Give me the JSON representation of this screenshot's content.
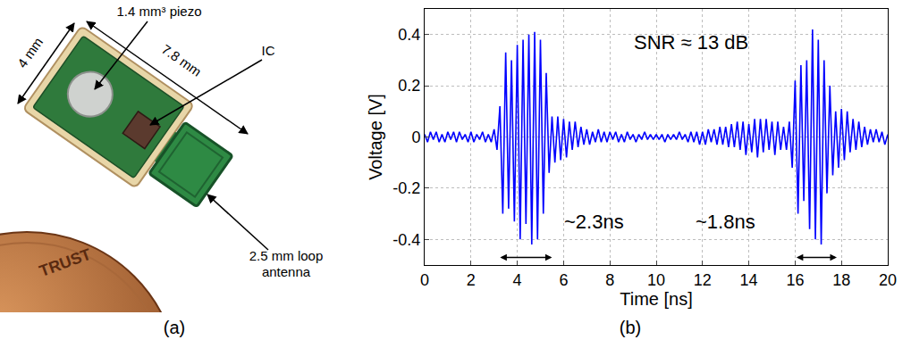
{
  "figure": {
    "panel_labels": [
      "(a)",
      "(b)"
    ]
  },
  "photo": {
    "labels": {
      "piezo": "1.4 mm³ piezo",
      "ic": "IC",
      "width": "4 mm",
      "length": "7.8 mm",
      "antenna": "2.5 mm loop antenna"
    },
    "coin_text": "TRUST"
  },
  "chart_data": {
    "type": "line",
    "x_label": "Time [ns]",
    "y_label": "Voltage [V]",
    "color": "#0000ff",
    "x": [
      0,
      0.125,
      0.25,
      0.375,
      0.5,
      0.625,
      0.75,
      0.875,
      1,
      1.125,
      1.25,
      1.375,
      1.5,
      1.625,
      1.75,
      1.875,
      2,
      2.125,
      2.25,
      2.375,
      2.5,
      2.625,
      2.75,
      2.875,
      3,
      3.125,
      3.25,
      3.375,
      3.5,
      3.625,
      3.75,
      3.875,
      4,
      4.125,
      4.25,
      4.375,
      4.5,
      4.625,
      4.75,
      4.875,
      5,
      5.125,
      5.25,
      5.375,
      5.5,
      5.625,
      5.75,
      5.875,
      6,
      6.125,
      6.25,
      6.375,
      6.5,
      6.625,
      6.75,
      6.875,
      7,
      7.125,
      7.25,
      7.375,
      7.5,
      7.625,
      7.75,
      7.875,
      8,
      8.125,
      8.25,
      8.375,
      8.5,
      8.625,
      8.75,
      8.875,
      9,
      9.125,
      9.25,
      9.375,
      9.5,
      9.625,
      9.75,
      9.875,
      10,
      10.125,
      10.25,
      10.375,
      10.5,
      10.625,
      10.75,
      10.875,
      11,
      11.125,
      11.25,
      11.375,
      11.5,
      11.625,
      11.75,
      11.875,
      12,
      12.125,
      12.25,
      12.375,
      12.5,
      12.625,
      12.75,
      12.875,
      13,
      13.125,
      13.25,
      13.375,
      13.5,
      13.625,
      13.75,
      13.875,
      14,
      14.125,
      14.25,
      14.375,
      14.5,
      14.625,
      14.75,
      14.875,
      15,
      15.125,
      15.25,
      15.375,
      15.5,
      15.625,
      15.75,
      15.875,
      16,
      16.125,
      16.25,
      16.375,
      16.5,
      16.625,
      16.75,
      16.875,
      17,
      17.125,
      17.25,
      17.375,
      17.5,
      17.625,
      17.75,
      17.875,
      18,
      18.125,
      18.25,
      18.375,
      18.5,
      18.625,
      18.75,
      18.875,
      19,
      19.125,
      19.25,
      19.375,
      19.5,
      19.625,
      19.75,
      19.875,
      20
    ],
    "values": [
      0.01,
      -0.02,
      0.02,
      -0.01,
      0.02,
      -0.02,
      0.01,
      -0.02,
      0.02,
      -0.01,
      0.02,
      -0.02,
      0.02,
      -0.01,
      0.01,
      -0.02,
      0.02,
      -0.02,
      0.01,
      -0.01,
      0.02,
      -0.02,
      0.01,
      -0.02,
      0.03,
      -0.05,
      0.12,
      -0.3,
      0.33,
      -0.28,
      0.3,
      -0.33,
      0.36,
      -0.4,
      0.38,
      -0.34,
      0.4,
      -0.42,
      0.41,
      -0.4,
      0.38,
      -0.3,
      0.25,
      -0.14,
      0.08,
      -0.1,
      0.08,
      -0.09,
      0.07,
      -0.08,
      0.06,
      -0.05,
      0.06,
      -0.04,
      0.04,
      -0.03,
      0.03,
      -0.03,
      0.02,
      -0.02,
      0.03,
      -0.02,
      0.02,
      -0.02,
      0.02,
      -0.01,
      0.02,
      -0.02,
      0.01,
      -0.02,
      0.02,
      -0.01,
      0.01,
      -0.02,
      0.01,
      -0.01,
      0.02,
      -0.01,
      0.01,
      -0.01,
      0.01,
      -0.01,
      0.01,
      -0.02,
      0.01,
      -0.01,
      0.01,
      -0.01,
      0.02,
      -0.01,
      0.01,
      -0.02,
      0.02,
      -0.02,
      0.02,
      -0.03,
      0.02,
      -0.03,
      0.03,
      -0.02,
      0.03,
      -0.03,
      0.04,
      -0.03,
      0.04,
      -0.04,
      0.05,
      -0.04,
      0.06,
      -0.05,
      0.06,
      -0.07,
      0.05,
      -0.06,
      0.07,
      -0.08,
      0.07,
      -0.06,
      0.07,
      -0.05,
      0.06,
      -0.07,
      0.06,
      -0.05,
      0.04,
      -0.05,
      0.06,
      -0.12,
      0.22,
      -0.3,
      0.28,
      -0.25,
      0.3,
      -0.36,
      0.42,
      -0.4,
      0.38,
      -0.42,
      0.3,
      -0.22,
      0.2,
      -0.15,
      0.1,
      -0.12,
      0.11,
      -0.09,
      0.1,
      -0.06,
      0.07,
      -0.05,
      0.06,
      -0.04,
      0.04,
      -0.03,
      0.03,
      -0.02,
      0.03,
      -0.02,
      0.02,
      -0.03,
      0.01
    ],
    "xlim": [
      0,
      20
    ],
    "xticks": [
      0,
      2,
      4,
      6,
      8,
      10,
      12,
      14,
      16,
      18,
      20
    ],
    "ylim": [
      -0.5,
      0.5
    ],
    "yticks": [
      -0.4,
      -0.2,
      0,
      0.2,
      0.4
    ],
    "grid": true,
    "annotations": [
      {
        "text": "SNR ≈ 13 dB",
        "x": 11.5,
        "y": 0.37
      },
      {
        "text": "~2.3ns",
        "x": 7.3,
        "y": -0.33
      },
      {
        "text": "~1.8ns",
        "x": 13,
        "y": -0.33
      }
    ],
    "spans": [
      {
        "x0": 3.2,
        "x1": 5.5,
        "y": -0.47
      },
      {
        "x0": 16,
        "x1": 17.8,
        "y": -0.47
      }
    ]
  }
}
